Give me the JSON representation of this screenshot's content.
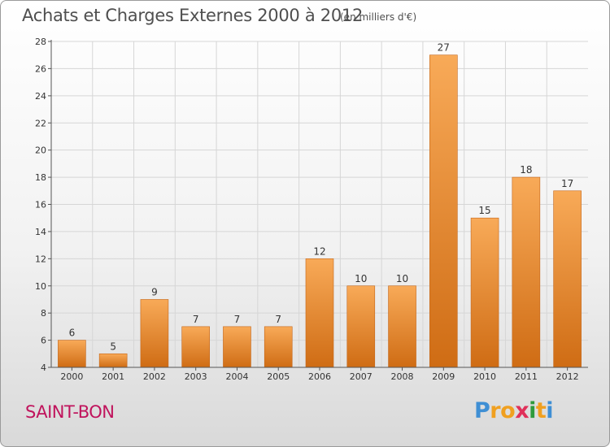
{
  "header": {
    "title": "Achats et Charges Externes 2000 à 2012",
    "unit": "(en milliers d'€)"
  },
  "place_name": "SAINT-BON",
  "logo": {
    "text": "Proxiti",
    "letter_colors": [
      "#3f8fd4",
      "#f0a020",
      "#f0a020",
      "#e0305a",
      "#2e9a3c",
      "#f0a020",
      "#3f8fd4"
    ]
  },
  "colors": {
    "bar_top": "#f8aa58",
    "bar_bottom": "#cf6c14",
    "bar_stroke": "#c4661a",
    "axis": "#555555",
    "grid": "#d6d6d6",
    "text": "#333333"
  },
  "chart_data": {
    "type": "bar",
    "categories": [
      "2000",
      "2001",
      "2002",
      "2003",
      "2004",
      "2005",
      "2006",
      "2007",
      "2008",
      "2009",
      "2010",
      "2011",
      "2012"
    ],
    "values": [
      6,
      5,
      9,
      7,
      7,
      7,
      12,
      10,
      10,
      27,
      15,
      18,
      17
    ],
    "ylim": [
      4,
      28
    ],
    "yticks": [
      4,
      6,
      8,
      10,
      12,
      14,
      16,
      18,
      20,
      22,
      24,
      26,
      28
    ],
    "grid": true,
    "data_labels": true
  }
}
